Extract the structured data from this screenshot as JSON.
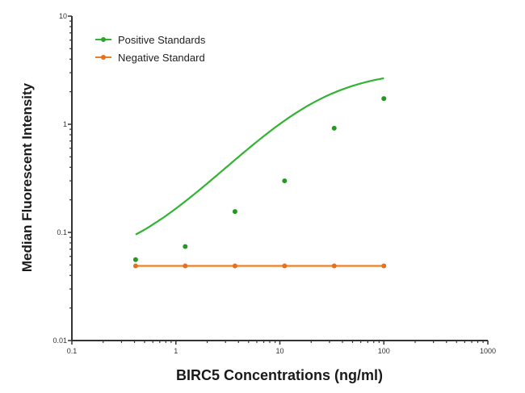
{
  "chart_data": {
    "type": "line",
    "title": "",
    "xlabel": "BIRC5 Concentrations (ng/ml)",
    "ylabel": "Median Fluorescent Intensity",
    "xscale": "log",
    "yscale": "log",
    "xlim": [
      0.1,
      1000
    ],
    "ylim": [
      0.01,
      10
    ],
    "x_ticks": [
      "0.1",
      "1",
      "10",
      "100",
      "1000"
    ],
    "y_ticks": [
      "0.01",
      "0.1",
      "1",
      "10"
    ],
    "grid": false,
    "legend_position": "upper left",
    "x": [
      0.41,
      1.23,
      3.7,
      11.1,
      33.3,
      100
    ],
    "series": [
      {
        "name": "Positive Standards",
        "color": "#33b333",
        "values": [
          0.056,
          0.074,
          0.156,
          0.3,
          0.92,
          1.73
        ],
        "fit": "sigmoidal curve"
      },
      {
        "name": "Negative Standard",
        "color": "#f07f22",
        "values": [
          0.049,
          0.049,
          0.049,
          0.049,
          0.049,
          0.049
        ],
        "fit": "straight line"
      }
    ]
  },
  "legend": {
    "items": [
      {
        "label": "Positive Standards",
        "color": "#33b333"
      },
      {
        "label": "Negative Standard",
        "color": "#f07f22"
      }
    ]
  }
}
